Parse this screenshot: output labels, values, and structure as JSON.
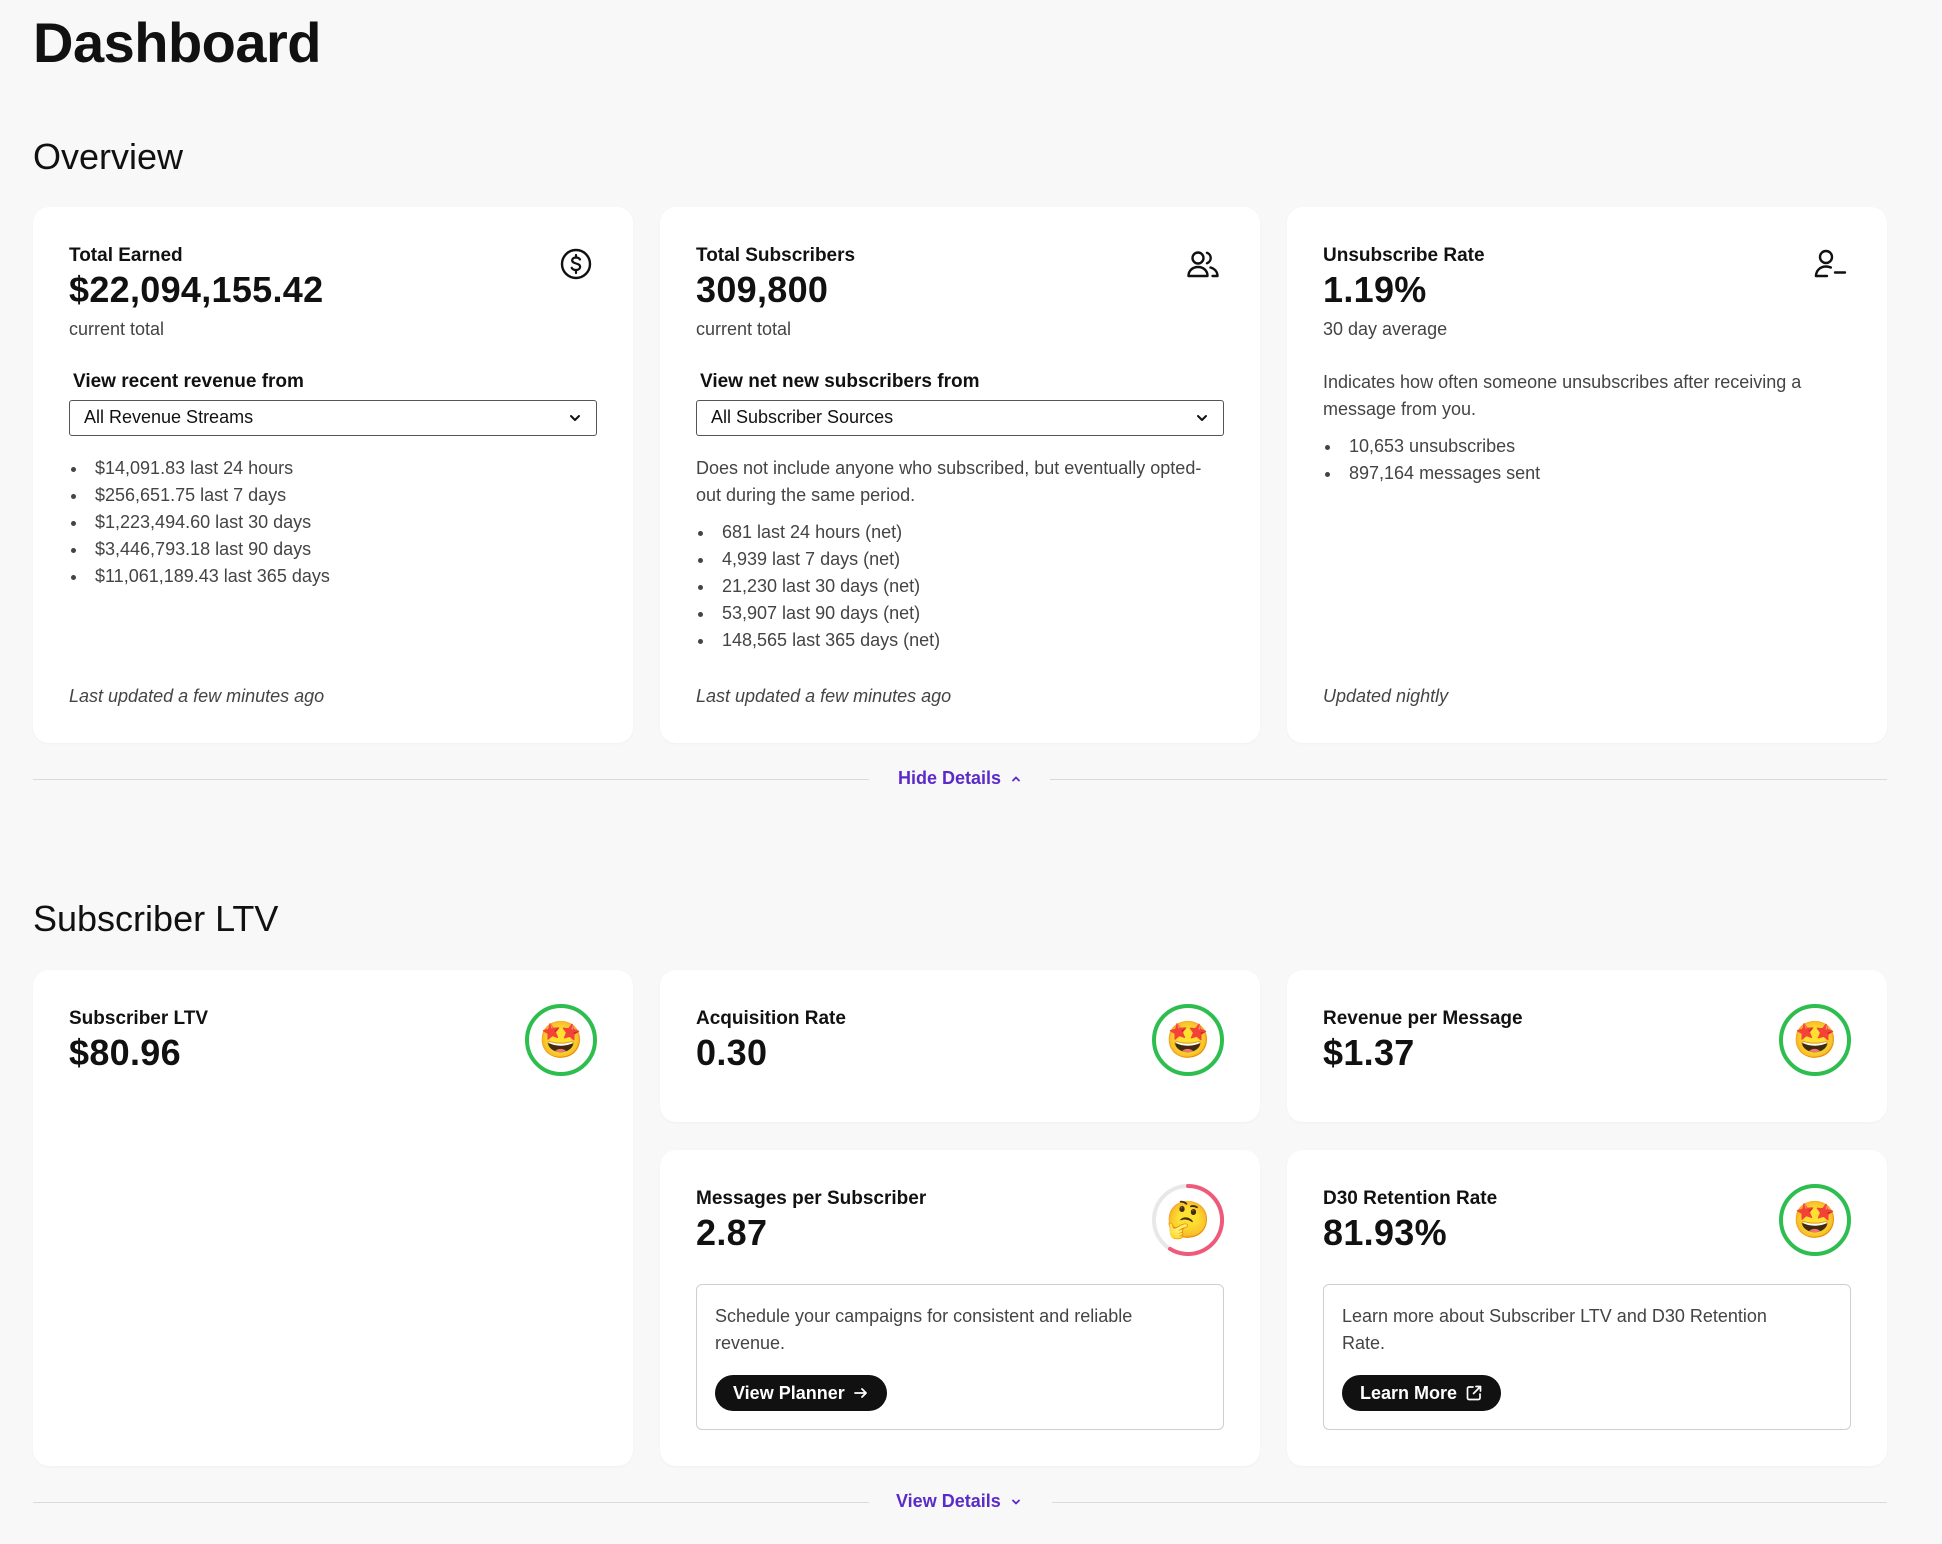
{
  "page": {
    "title": "Dashboard"
  },
  "overview": {
    "title": "Overview",
    "total_earned": {
      "label": "Total Earned",
      "value": "$22,094,155.42",
      "sub": "current total",
      "icon": "dollar-circle-icon",
      "select_label": "View recent revenue from",
      "select_value": "All Revenue Streams",
      "items": [
        "$14,091.83 last 24 hours",
        "$256,651.75 last 7 days",
        "$1,223,494.60 last 30 days",
        "$3,446,793.18 last 90 days",
        "$11,061,189.43 last 365 days"
      ],
      "footnote": "Last updated a few minutes ago"
    },
    "total_subscribers": {
      "label": "Total Subscribers",
      "value": "309,800",
      "sub": "current total",
      "icon": "users-icon",
      "select_label": "View net new subscribers from",
      "select_value": "All Subscriber Sources",
      "description": "Does not include anyone who subscribed, but eventually opted-out during the same period.",
      "items": [
        "681 last 24 hours (net)",
        "4,939 last 7 days (net)",
        "21,230 last 30 days (net)",
        "53,907 last 90 days (net)",
        "148,565 last 365 days (net)"
      ],
      "footnote": "Last updated a few minutes ago"
    },
    "unsubscribe_rate": {
      "label": "Unsubscribe Rate",
      "value": "1.19%",
      "sub": "30 day average",
      "icon": "user-minus-icon",
      "description": "Indicates how often someone unsubscribes after receiving a message from you.",
      "items": [
        "10,653 unsubscribes",
        "897,164 messages sent"
      ],
      "footnote": "Updated nightly"
    },
    "toggle_label": "Hide Details"
  },
  "ltv": {
    "title": "Subscriber LTV",
    "subscriber_ltv": {
      "label": "Subscriber LTV",
      "value": "$80.96",
      "emoji": "🤩"
    },
    "acquisition_rate": {
      "label": "Acquisition Rate",
      "value": "0.30",
      "emoji": "🤩"
    },
    "revenue_per_message": {
      "label": "Revenue per Message",
      "value": "$1.37",
      "emoji": "🤩"
    },
    "messages_per_subscriber": {
      "label": "Messages per Subscriber",
      "value": "2.87",
      "emoji": "🤔",
      "tip": "Schedule your campaigns for consistent and reliable revenue.",
      "button": "View Planner"
    },
    "d30_retention": {
      "label": "D30 Retention Rate",
      "value": "81.93%",
      "emoji": "🤩",
      "tip": "Learn more about Subscriber LTV and D30 Retention Rate.",
      "button": "Learn More"
    },
    "toggle_label": "View Details"
  },
  "colors": {
    "accent": "#5b2bc9",
    "good": "#2dbe4f",
    "warn": "#ef5a7a",
    "dark": "#111111"
  }
}
